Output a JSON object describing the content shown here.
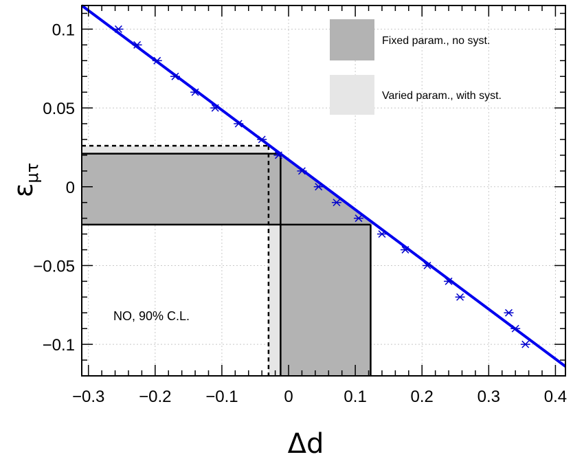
{
  "chart_data": {
    "type": "scatter",
    "xlabel": "Δd",
    "ylabel": "ε",
    "ylabel_subscript": "μτ",
    "xlim": [
      -0.31,
      0.415
    ],
    "ylim": [
      -0.12,
      0.115
    ],
    "x_ticks": [
      -0.3,
      -0.2,
      -0.1,
      0,
      0.1,
      0.2,
      0.3,
      0.4
    ],
    "x_tick_labels": [
      "−0.3",
      "−0.2",
      "−0.1",
      "0",
      "0.1",
      "0.2",
      "0.3",
      "0.4"
    ],
    "y_ticks": [
      -0.1,
      -0.05,
      0,
      0.05,
      0.1
    ],
    "y_tick_labels": [
      "−0.1",
      "−0.05",
      "0",
      "0.05",
      "0.1"
    ],
    "grid": true,
    "annotation": "NO, 90% C.L.",
    "legend": {
      "placement": "top-right",
      "entries": [
        {
          "label": "Fixed param., no syst.",
          "color": "#b3b3b3"
        },
        {
          "label": "Varied param., with syst.",
          "color": "#e6e6e6"
        }
      ]
    },
    "fit_line": {
      "color": "#0000ee",
      "x": [
        -0.31,
        0.415
      ],
      "y": [
        0.115,
        -0.114
      ]
    },
    "points": {
      "marker": "asterisk",
      "color": "#0000cc",
      "x": [
        -0.255,
        -0.227,
        -0.197,
        -0.17,
        -0.14,
        -0.11,
        -0.075,
        -0.04,
        -0.015,
        0.02,
        0.045,
        0.072,
        0.105,
        0.14,
        0.175,
        0.208,
        0.24,
        0.257,
        0.33,
        0.34,
        0.355
      ],
      "y": [
        0.1,
        0.09,
        0.08,
        0.07,
        0.06,
        0.05,
        0.04,
        0.03,
        0.02,
        0.01,
        0.0,
        -0.01,
        -0.02,
        -0.03,
        -0.04,
        -0.05,
        -0.06,
        -0.07,
        -0.08,
        -0.09,
        -0.1
      ]
    },
    "regions": {
      "fixed": {
        "color": "#b3b3b3",
        "epsilon_range": [
          -0.024,
          0.021
        ],
        "delta_d_range": [
          -0.012,
          0.123
        ]
      },
      "varied": {
        "color": "#e6e6e6",
        "epsilon_upper": 0.026,
        "delta_d_lower": -0.03
      }
    }
  }
}
